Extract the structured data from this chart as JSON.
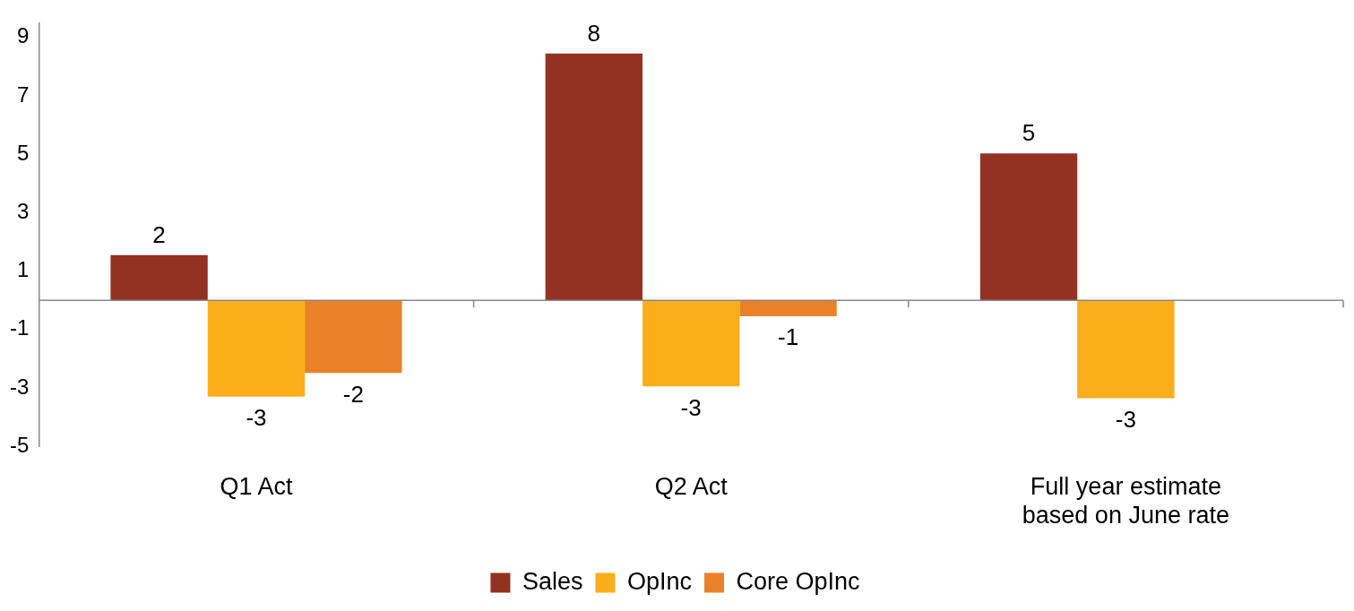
{
  "chart_data": {
    "type": "bar",
    "categories": [
      "Q1 Act",
      "Q2 Act",
      "Full year estimate based on June rate"
    ],
    "series": [
      {
        "name": "Sales",
        "color": "#933222",
        "values": [
          1.55,
          8.45,
          5.03
        ],
        "value_labels": [
          "2",
          "8",
          "5"
        ]
      },
      {
        "name": "OpInc",
        "color": "#fbae1a",
        "values": [
          -3.3,
          -2.95,
          -3.35
        ],
        "value_labels": [
          "-3",
          "-3",
          "-3"
        ]
      },
      {
        "name": "Core OpInc",
        "color": "#ea8128",
        "values": [
          -2.49,
          -0.55,
          null
        ],
        "value_labels": [
          "-2",
          "-1",
          null
        ]
      }
    ],
    "ylim": [
      -5,
      9.5
    ],
    "yticks": [
      -5,
      -3,
      -1,
      1,
      3,
      5,
      7,
      9
    ],
    "grid": false,
    "legend": "bottom"
  }
}
